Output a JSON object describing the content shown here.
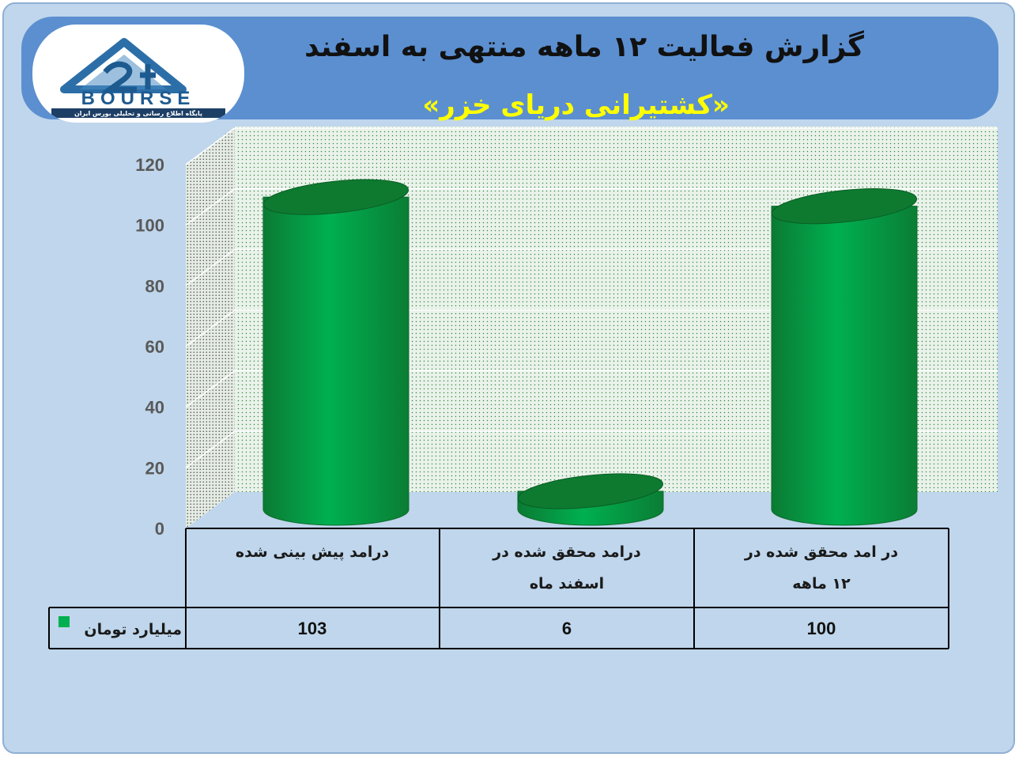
{
  "header": {
    "title": "گزارش فعالیت ۱۲ ماهه منتهی به اسفند",
    "subtitle": "«کشتیرانی دریای خزر»",
    "logo_text": "BOURSE",
    "logo_tagline": "پایگاه اطلاع رسانی و تحلیلی بورس ایران"
  },
  "chart_data": {
    "type": "bar",
    "categories": [
      "درامد پیش بینی شده",
      "درامد محقق شده در اسفند ماه",
      "در امد محقق شده در ۱۲ ماهه"
    ],
    "category_lines": [
      [
        "درامد پیش بینی شده"
      ],
      [
        "درامد محقق شده در",
        "اسفند ماه"
      ],
      [
        "در امد محقق شده در",
        "۱۲ ماهه"
      ]
    ],
    "series": [
      {
        "name": "میلیارد تومان",
        "values": [
          103,
          6,
          100
        ],
        "color": "#00b050"
      }
    ],
    "value_labels": [
      "103",
      "6",
      "100"
    ],
    "ylim": [
      0,
      120
    ],
    "yticks": [
      0,
      20,
      40,
      60,
      80,
      100,
      120
    ],
    "grid": true,
    "legend": "data-table",
    "style": "3d-cylinder"
  },
  "colors": {
    "frame": "#bfd6ec",
    "banner": "#5b8fd0",
    "bar": "#00b050",
    "bar_dark": "#0d6b2a",
    "plot_back": "#eef4ee",
    "title": "#111111",
    "subtitle": "#ffff00"
  }
}
